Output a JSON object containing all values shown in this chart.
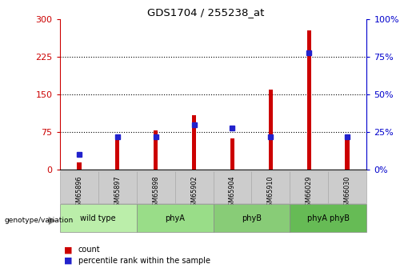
{
  "title": "GDS1704 / 255238_at",
  "samples": [
    "GSM65896",
    "GSM65897",
    "GSM65898",
    "GSM65902",
    "GSM65904",
    "GSM65910",
    "GSM66029",
    "GSM66030"
  ],
  "counts": [
    15,
    63,
    78,
    108,
    63,
    160,
    278,
    62
  ],
  "percentile_ranks": [
    10,
    22,
    22,
    30,
    28,
    22,
    78,
    22
  ],
  "groups": [
    {
      "label": "wild type",
      "start": 0,
      "end": 2,
      "color": "#bbeeaa"
    },
    {
      "label": "phyA",
      "start": 2,
      "end": 4,
      "color": "#99dd88"
    },
    {
      "label": "phyB",
      "start": 4,
      "end": 6,
      "color": "#88cc77"
    },
    {
      "label": "phyA phyB",
      "start": 6,
      "end": 8,
      "color": "#66bb55"
    }
  ],
  "left_ylim": [
    0,
    300
  ],
  "right_ylim": [
    0,
    100
  ],
  "left_yticks": [
    0,
    75,
    150,
    225,
    300
  ],
  "right_yticks": [
    0,
    25,
    50,
    75,
    100
  ],
  "bar_color": "#cc0000",
  "marker_color": "#2222cc",
  "grid_color": "#000000",
  "left_tick_color": "#cc0000",
  "right_tick_color": "#0000cc",
  "genotype_label": "genotype/variation",
  "legend_count": "count",
  "legend_percentile": "percentile rank within the sample",
  "sample_box_color": "#cccccc",
  "sample_box_edge": "#aaaaaa",
  "group_edge_color": "#888888",
  "bar_width": 0.12,
  "marker_size": 4
}
